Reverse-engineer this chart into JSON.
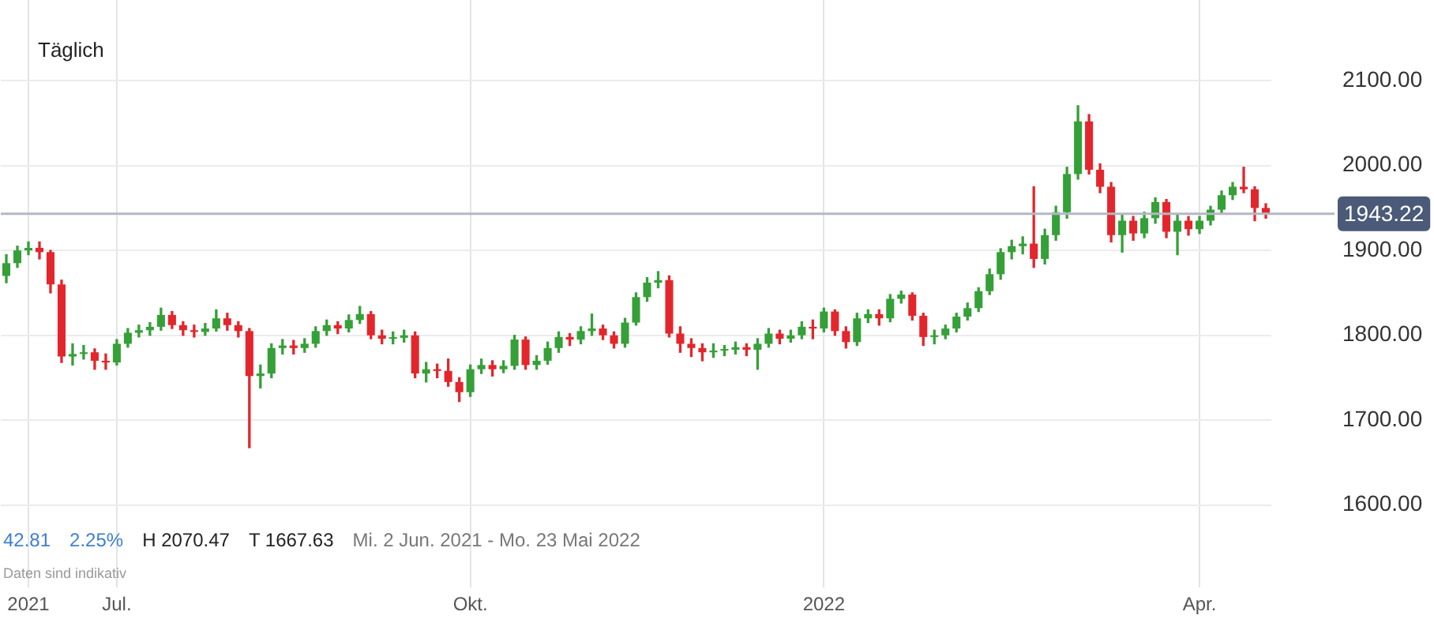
{
  "chart_data": {
    "type": "candlestick",
    "title": "Täglich",
    "categories": [
      null,
      null,
      "2021",
      null,
      null,
      null,
      null,
      null,
      null,
      null,
      "Jul.",
      null,
      null,
      null,
      null,
      null,
      null,
      null,
      null,
      null,
      null,
      null,
      null,
      null,
      null,
      null,
      null,
      null,
      null,
      null,
      null,
      null,
      null,
      null,
      null,
      null,
      null,
      null,
      null,
      null,
      null,
      null,
      "Okt.",
      null,
      null,
      null,
      null,
      null,
      null,
      null,
      null,
      null,
      null,
      null,
      null,
      null,
      null,
      null,
      null,
      null,
      null,
      null,
      null,
      null,
      null,
      null,
      null,
      null,
      null,
      null,
      null,
      null,
      null,
      null,
      "2022",
      null,
      null,
      null,
      null,
      null,
      null,
      null,
      null,
      null,
      null,
      null,
      null,
      null,
      null,
      null,
      null,
      null,
      null,
      null,
      null,
      null,
      null,
      null,
      null,
      null,
      null,
      null,
      null,
      null,
      null,
      null,
      null,
      null,
      "Apr.",
      null,
      null,
      null,
      null,
      null,
      null
    ],
    "ohlc": [
      [
        1870,
        1895,
        1862,
        1885
      ],
      [
        1885,
        1905,
        1880,
        1900
      ],
      [
        1900,
        1910,
        1895,
        1903
      ],
      [
        1903,
        1910,
        1890,
        1898
      ],
      [
        1898,
        1900,
        1850,
        1860
      ],
      [
        1860,
        1865,
        1768,
        1775
      ],
      [
        1775,
        1790,
        1765,
        1778
      ],
      [
        1778,
        1788,
        1772,
        1780
      ],
      [
        1780,
        1784,
        1760,
        1770
      ],
      [
        1770,
        1778,
        1760,
        1768
      ],
      [
        1768,
        1795,
        1765,
        1790
      ],
      [
        1790,
        1808,
        1786,
        1803
      ],
      [
        1803,
        1812,
        1798,
        1806
      ],
      [
        1806,
        1815,
        1800,
        1810
      ],
      [
        1810,
        1832,
        1806,
        1824
      ],
      [
        1824,
        1828,
        1808,
        1812
      ],
      [
        1812,
        1816,
        1800,
        1806
      ],
      [
        1806,
        1812,
        1798,
        1804
      ],
      [
        1804,
        1814,
        1800,
        1808
      ],
      [
        1808,
        1830,
        1805,
        1820
      ],
      [
        1820,
        1826,
        1806,
        1812
      ],
      [
        1812,
        1816,
        1798,
        1805
      ],
      [
        1805,
        1808,
        1667.63,
        1752
      ],
      [
        1752,
        1765,
        1738,
        1755
      ],
      [
        1755,
        1790,
        1750,
        1785
      ],
      [
        1785,
        1795,
        1778,
        1788
      ],
      [
        1788,
        1794,
        1778,
        1785
      ],
      [
        1785,
        1796,
        1780,
        1790
      ],
      [
        1790,
        1810,
        1786,
        1805
      ],
      [
        1805,
        1818,
        1800,
        1812
      ],
      [
        1812,
        1816,
        1802,
        1808
      ],
      [
        1808,
        1824,
        1804,
        1818
      ],
      [
        1818,
        1834,
        1814,
        1825
      ],
      [
        1825,
        1828,
        1796,
        1800
      ],
      [
        1800,
        1806,
        1790,
        1796
      ],
      [
        1796,
        1804,
        1790,
        1797
      ],
      [
        1797,
        1806,
        1792,
        1800
      ],
      [
        1800,
        1804,
        1750,
        1755
      ],
      [
        1755,
        1768,
        1745,
        1760
      ],
      [
        1760,
        1766,
        1750,
        1758
      ],
      [
        1758,
        1772,
        1740,
        1745
      ],
      [
        1745,
        1750,
        1722,
        1733
      ],
      [
        1733,
        1765,
        1728,
        1760
      ],
      [
        1760,
        1772,
        1755,
        1765
      ],
      [
        1765,
        1770,
        1752,
        1760
      ],
      [
        1760,
        1770,
        1756,
        1764
      ],
      [
        1764,
        1800,
        1760,
        1795
      ],
      [
        1795,
        1798,
        1760,
        1765
      ],
      [
        1765,
        1776,
        1760,
        1770
      ],
      [
        1770,
        1792,
        1766,
        1785
      ],
      [
        1785,
        1804,
        1780,
        1798
      ],
      [
        1798,
        1802,
        1788,
        1795
      ],
      [
        1795,
        1810,
        1790,
        1805
      ],
      [
        1805,
        1825,
        1800,
        1808
      ],
      [
        1808,
        1812,
        1795,
        1800
      ],
      [
        1800,
        1804,
        1785,
        1790
      ],
      [
        1790,
        1820,
        1786,
        1815
      ],
      [
        1815,
        1850,
        1812,
        1845
      ],
      [
        1845,
        1868,
        1840,
        1862
      ],
      [
        1862,
        1875,
        1856,
        1865
      ],
      [
        1865,
        1870,
        1798,
        1802
      ],
      [
        1802,
        1810,
        1780,
        1790
      ],
      [
        1790,
        1796,
        1775,
        1785
      ],
      [
        1785,
        1790,
        1770,
        1780
      ],
      [
        1780,
        1790,
        1774,
        1782
      ],
      [
        1782,
        1788,
        1776,
        1783
      ],
      [
        1783,
        1792,
        1778,
        1786
      ],
      [
        1786,
        1790,
        1776,
        1783
      ],
      [
        1783,
        1796,
        1760,
        1790
      ],
      [
        1790,
        1808,
        1786,
        1802
      ],
      [
        1802,
        1806,
        1790,
        1796
      ],
      [
        1796,
        1806,
        1792,
        1800
      ],
      [
        1800,
        1816,
        1796,
        1810
      ],
      [
        1810,
        1818,
        1796,
        1808
      ],
      [
        1808,
        1832,
        1804,
        1828
      ],
      [
        1828,
        1830,
        1800,
        1805
      ],
      [
        1805,
        1810,
        1785,
        1792
      ],
      [
        1792,
        1826,
        1788,
        1820
      ],
      [
        1820,
        1830,
        1815,
        1825
      ],
      [
        1825,
        1830,
        1812,
        1820
      ],
      [
        1820,
        1848,
        1816,
        1843
      ],
      [
        1843,
        1852,
        1838,
        1848
      ],
      [
        1848,
        1850,
        1818,
        1823
      ],
      [
        1823,
        1826,
        1788,
        1798
      ],
      [
        1798,
        1806,
        1790,
        1800
      ],
      [
        1800,
        1812,
        1796,
        1808
      ],
      [
        1808,
        1826,
        1804,
        1822
      ],
      [
        1822,
        1838,
        1818,
        1832
      ],
      [
        1832,
        1856,
        1828,
        1852
      ],
      [
        1852,
        1878,
        1848,
        1872
      ],
      [
        1872,
        1902,
        1866,
        1898
      ],
      [
        1898,
        1912,
        1890,
        1905
      ],
      [
        1905,
        1916,
        1896,
        1908
      ],
      [
        1908,
        1975,
        1880,
        1890
      ],
      [
        1890,
        1925,
        1884,
        1918
      ],
      [
        1918,
        1952,
        1912,
        1945
      ],
      [
        1945,
        1998,
        1938,
        1990
      ],
      [
        1990,
        2070.47,
        1984,
        2052
      ],
      [
        2052,
        2060,
        1990,
        1995
      ],
      [
        1995,
        2002,
        1968,
        1975
      ],
      [
        1975,
        1980,
        1910,
        1918
      ],
      [
        1918,
        1942,
        1898,
        1935
      ],
      [
        1935,
        1940,
        1912,
        1920
      ],
      [
        1920,
        1945,
        1915,
        1938
      ],
      [
        1938,
        1962,
        1932,
        1957
      ],
      [
        1957,
        1960,
        1915,
        1922
      ],
      [
        1922,
        1942,
        1895,
        1935
      ],
      [
        1935,
        1940,
        1918,
        1925
      ],
      [
        1925,
        1940,
        1920,
        1935
      ],
      [
        1935,
        1952,
        1930,
        1948
      ],
      [
        1948,
        1970,
        1944,
        1965
      ],
      [
        1965,
        1980,
        1960,
        1975
      ],
      [
        1975,
        1998,
        1968,
        1972
      ],
      [
        1972,
        1975,
        1935,
        1950
      ],
      [
        1950,
        1955,
        1938,
        1943.22
      ]
    ],
    "ylim": [
      1503,
      2195
    ],
    "yticks": [
      {
        "value": 1600,
        "label": "1600.00"
      },
      {
        "value": 1700,
        "label": "1700.00"
      },
      {
        "value": 1800,
        "label": "1800.00"
      },
      {
        "value": 1900,
        "label": "1900.00"
      },
      {
        "value": 2000,
        "label": "2000.00"
      },
      {
        "value": 2100,
        "label": "2100.00"
      }
    ],
    "grid": true,
    "ref_lines": [
      {
        "axis": "y",
        "value": 1943.22,
        "label": "1943.22"
      }
    ],
    "annotations": [
      "42.81",
      "2.25%",
      "H 2070.47",
      "T 1667.63",
      "Mi. 2 Jun. 2021 - Mo. 23 Mai 2022",
      "Daten sind indikativ"
    ]
  }
}
